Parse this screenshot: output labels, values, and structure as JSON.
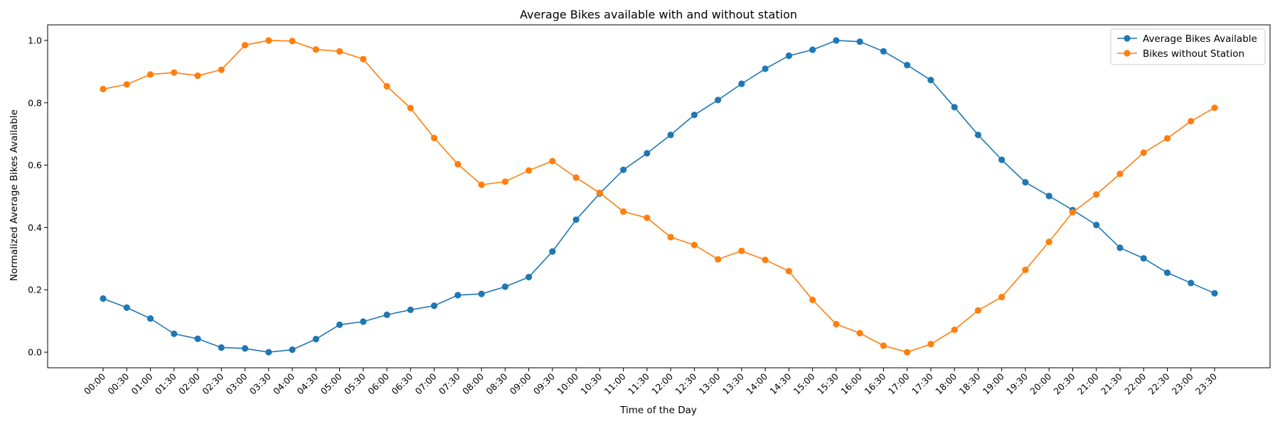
{
  "chart_data": {
    "type": "line",
    "title": "Average Bikes available with and without station",
    "xlabel": "Time of the Day",
    "ylabel": "Normalized Average Bikes Available",
    "ylim": [
      -0.05,
      1.05
    ],
    "yticks": [
      "0.0",
      "0.2",
      "0.4",
      "0.6",
      "0.8",
      "1.0"
    ],
    "legend_position": "top-right",
    "grid": false,
    "categories": [
      "00:00",
      "00:30",
      "01:00",
      "01:30",
      "02:00",
      "02:30",
      "03:00",
      "03:30",
      "04:00",
      "04:30",
      "05:00",
      "05:30",
      "06:00",
      "06:30",
      "07:00",
      "07:30",
      "08:00",
      "08:30",
      "09:00",
      "09:30",
      "10:00",
      "10:30",
      "11:00",
      "11:30",
      "12:00",
      "12:30",
      "13:00",
      "13:30",
      "14:00",
      "14:30",
      "15:00",
      "15:30",
      "16:00",
      "16:30",
      "17:00",
      "17:30",
      "18:00",
      "18:30",
      "19:00",
      "19:30",
      "20:00",
      "20:30",
      "21:00",
      "21:30",
      "22:00",
      "22:30",
      "23:00",
      "23:30"
    ],
    "series": [
      {
        "name": "Average Bikes Available",
        "color": "#1f77b4",
        "values": [
          0.172,
          0.143,
          0.108,
          0.059,
          0.043,
          0.015,
          0.012,
          0.0,
          0.008,
          0.042,
          0.088,
          0.098,
          0.12,
          0.136,
          0.149,
          0.183,
          0.187,
          0.21,
          0.241,
          0.323,
          0.425,
          0.509,
          0.585,
          0.638,
          0.697,
          0.761,
          0.809,
          0.861,
          0.909,
          0.951,
          0.97,
          1.0,
          0.996,
          0.965,
          0.921,
          0.873,
          0.786,
          0.697,
          0.617,
          0.545,
          0.501,
          0.456,
          0.408,
          0.335,
          0.301,
          0.255,
          0.222,
          0.189
        ]
      },
      {
        "name": "Bikes without Station",
        "color": "#ff7f0e",
        "values": [
          0.844,
          0.859,
          0.891,
          0.897,
          0.887,
          0.906,
          0.985,
          1.0,
          0.998,
          0.971,
          0.965,
          0.94,
          0.853,
          0.783,
          0.687,
          0.603,
          0.537,
          0.547,
          0.583,
          0.613,
          0.56,
          0.511,
          0.451,
          0.431,
          0.369,
          0.344,
          0.298,
          0.325,
          0.296,
          0.26,
          0.168,
          0.09,
          0.061,
          0.021,
          0.0,
          0.026,
          0.072,
          0.134,
          0.177,
          0.264,
          0.354,
          0.449,
          0.506,
          0.572,
          0.64,
          0.686,
          0.741,
          0.784
        ]
      }
    ]
  }
}
